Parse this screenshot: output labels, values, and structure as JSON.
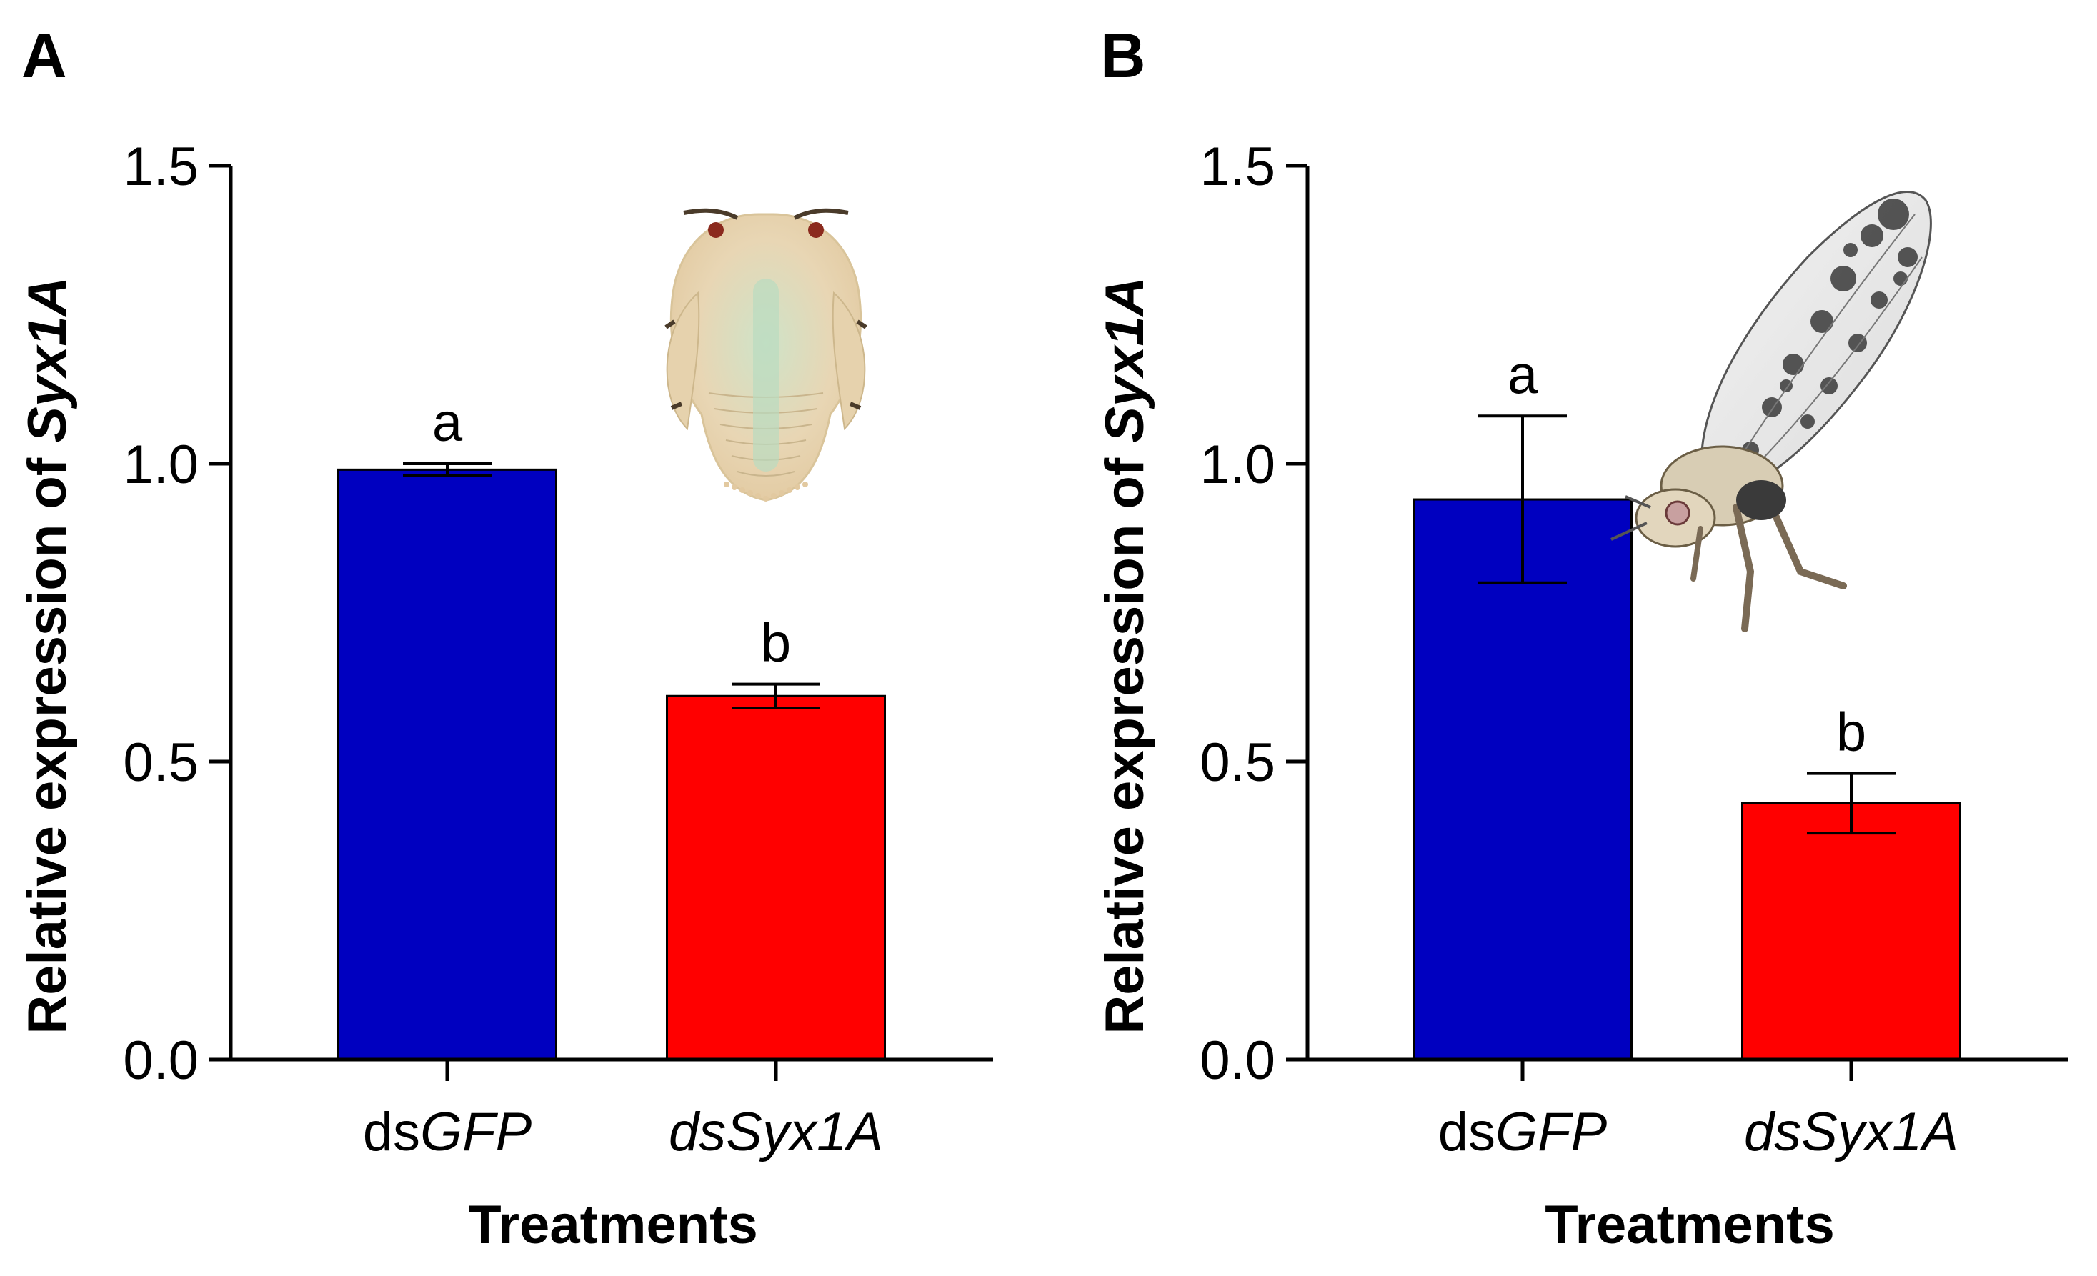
{
  "chart_data": [
    {
      "type": "bar",
      "panel_label": "A",
      "categories": [
        {
          "prefix": "ds",
          "italic": "GFP"
        },
        {
          "prefix": "",
          "italic": "dsSyx1A"
        }
      ],
      "values": [
        0.99,
        0.61
      ],
      "errors": [
        0.01,
        0.02
      ],
      "significance": [
        "a",
        "b"
      ],
      "colors": [
        "#0000c0",
        "#ff0000"
      ],
      "ylabel": {
        "plain": "Relative expression of ",
        "italic": "Syx1A"
      },
      "xlabel": "Treatments",
      "ylim": [
        0,
        1.5
      ],
      "yticks": [
        "0.0",
        "0.5",
        "1.0",
        "1.5"
      ],
      "illustration": "nymph-icon"
    },
    {
      "type": "bar",
      "panel_label": "B",
      "categories": [
        {
          "prefix": "ds",
          "italic": "GFP"
        },
        {
          "prefix": "",
          "italic": "dsSyx1A"
        }
      ],
      "values": [
        0.94,
        0.43
      ],
      "errors": [
        0.14,
        0.05
      ],
      "significance": [
        "a",
        "b"
      ],
      "colors": [
        "#0000c0",
        "#ff0000"
      ],
      "ylabel": {
        "plain": "Relative expression of ",
        "italic": "Syx1A"
      },
      "xlabel": "Treatments",
      "ylim": [
        0,
        1.5
      ],
      "yticks": [
        "0.0",
        "0.5",
        "1.0",
        "1.5"
      ],
      "illustration": "adult-psyllid-icon"
    }
  ]
}
